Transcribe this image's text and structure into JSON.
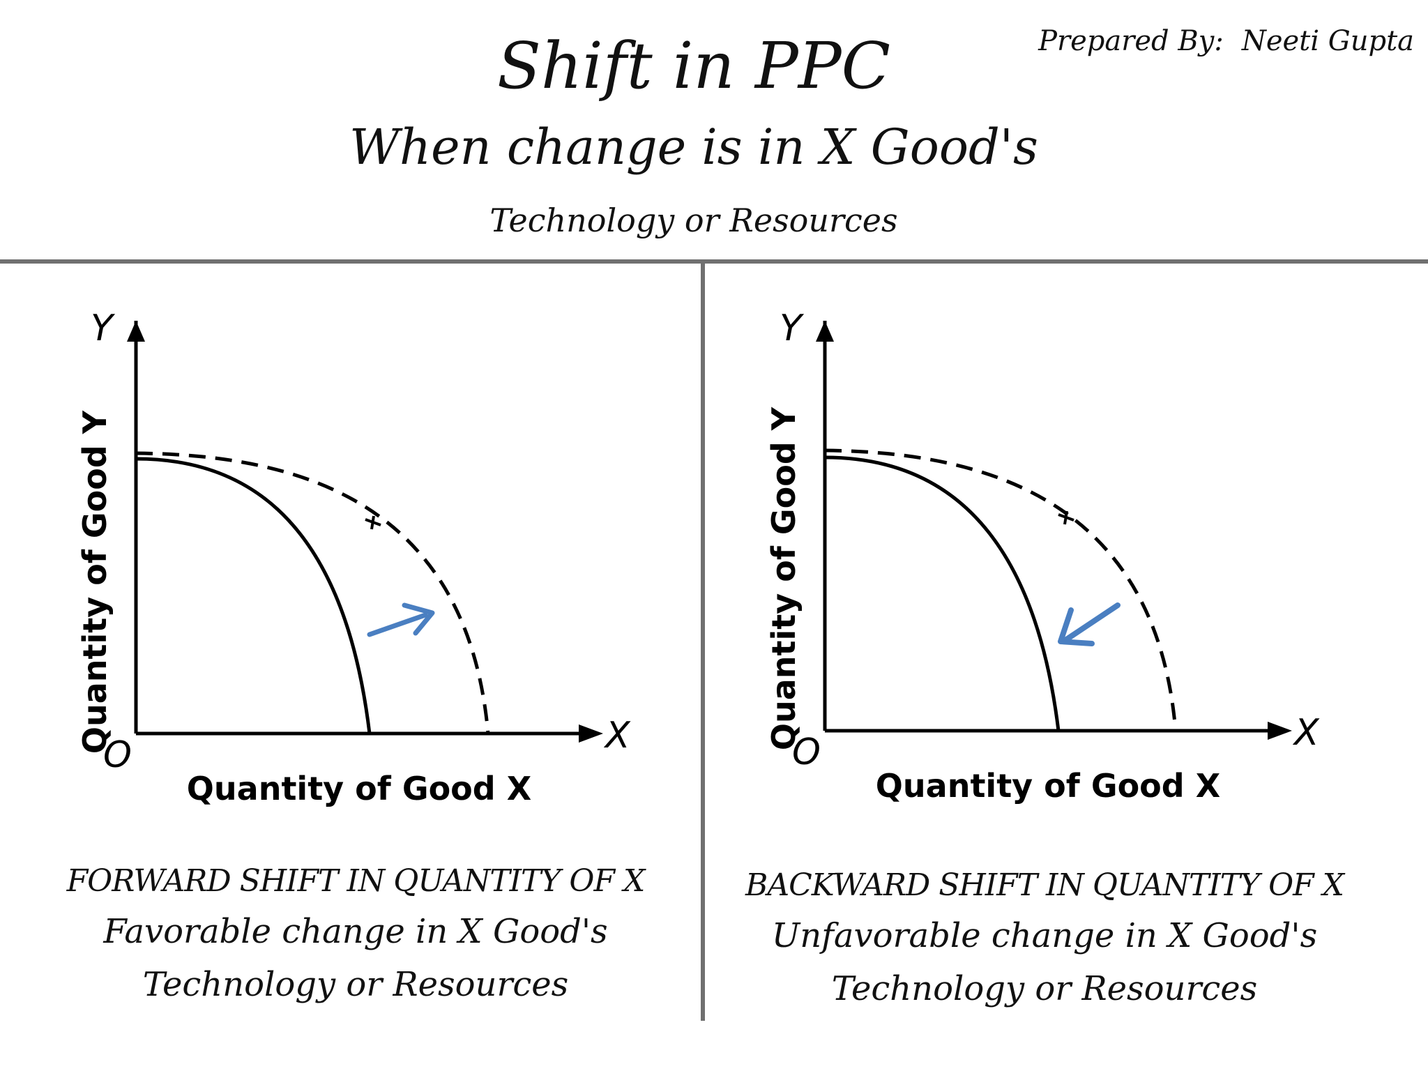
{
  "header": {
    "credit_label": "Prepared By:",
    "credit_name": "Neeti Gupta",
    "title": "Shift in PPC",
    "subtitle": "When change is in X Good's",
    "subsubtitle": "Technology or Resources"
  },
  "panels": [
    {
      "y_axis_label": "Quantity of Good Y",
      "x_axis_label": "Quantity of Good X",
      "y_letter": "Y",
      "x_letter": "X",
      "origin_letter": "O",
      "shift_direction": "outward",
      "arrow_color": "#4a7fc1",
      "caption_heading": "FORWARD SHIFT IN QUANTITY OF X",
      "caption_line2": "Favorable change in X Good's",
      "caption_line3": "Technology or Resources"
    },
    {
      "y_axis_label": "Quantity of Good Y",
      "x_axis_label": "Quantity of Good X",
      "y_letter": "Y",
      "x_letter": "X",
      "origin_letter": "O",
      "shift_direction": "inward",
      "arrow_color": "#4a7fc1",
      "caption_heading": "BACKWARD SHIFT IN QUANTITY OF X",
      "caption_line2": "Unfavorable change in X Good's",
      "caption_line3": "Technology or Resources"
    }
  ],
  "colors": {
    "divider": "#707070",
    "ink": "#111111",
    "arrow": "#4a7fc1"
  }
}
